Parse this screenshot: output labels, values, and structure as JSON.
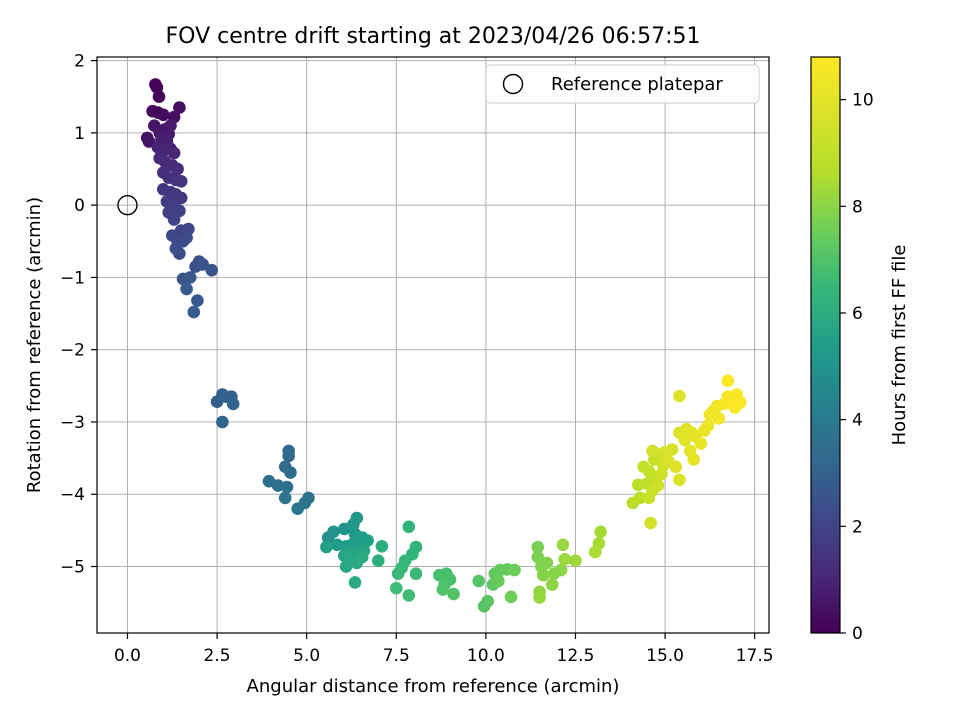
{
  "chart_data": {
    "type": "scatter",
    "title": "FOV centre drift starting at 2023/04/26 06:57:51",
    "xlabel": "Angular distance from reference (arcmin)",
    "ylabel": "Rotation from reference (arcmin)",
    "xlim": [
      -0.85,
      17.9
    ],
    "ylim": [
      -5.92,
      2.05
    ],
    "xticks": [
      0.0,
      2.5,
      5.0,
      7.5,
      10.0,
      12.5,
      15.0,
      17.5
    ],
    "xtick_labels": [
      "0.0",
      "2.5",
      "5.0",
      "7.5",
      "10.0",
      "12.5",
      "15.0",
      "17.5"
    ],
    "yticks": [
      -5,
      -4,
      -3,
      -2,
      -1,
      0,
      1,
      2
    ],
    "ytick_labels": [
      "−5",
      "−4",
      "−3",
      "−2",
      "−1",
      "0",
      "1",
      "2"
    ],
    "grid": true,
    "legend": {
      "position": "top-right",
      "entries": [
        "Reference platepar"
      ]
    },
    "reference_point": {
      "x": 0.0,
      "y": 0.0
    },
    "colorbar": {
      "label": "Hours from first FF file",
      "colormap": "viridis",
      "range": [
        0,
        10.8
      ],
      "ticks": [
        0,
        2,
        4,
        6,
        8,
        10
      ],
      "tick_labels": [
        "0",
        "2",
        "4",
        "6",
        "8",
        "10"
      ]
    },
    "points": [
      [
        0.78,
        1.67,
        0.05
      ],
      [
        0.82,
        1.63,
        0.1
      ],
      [
        0.88,
        1.5,
        0.15
      ],
      [
        0.7,
        1.3,
        0.2
      ],
      [
        0.85,
        1.28,
        0.25
      ],
      [
        1.0,
        1.25,
        0.3
      ],
      [
        1.3,
        1.22,
        0.35
      ],
      [
        1.45,
        1.35,
        0.4
      ],
      [
        0.55,
        0.93,
        0.45
      ],
      [
        0.6,
        0.88,
        0.5
      ],
      [
        0.75,
        1.1,
        0.55
      ],
      [
        0.9,
        1.0,
        0.6
      ],
      [
        1.05,
        1.05,
        0.65
      ],
      [
        1.15,
        0.98,
        0.7
      ],
      [
        1.2,
        1.1,
        0.75
      ],
      [
        0.95,
        0.92,
        0.8
      ],
      [
        1.1,
        0.88,
        0.85
      ],
      [
        0.85,
        0.8,
        0.9
      ],
      [
        1.0,
        0.75,
        0.95
      ],
      [
        1.2,
        0.78,
        1.0
      ],
      [
        1.3,
        0.72,
        1.05
      ],
      [
        0.9,
        0.65,
        1.1
      ],
      [
        1.05,
        0.6,
        1.15
      ],
      [
        1.25,
        0.55,
        1.2
      ],
      [
        1.4,
        0.5,
        1.25
      ],
      [
        1.0,
        0.45,
        1.3
      ],
      [
        1.15,
        0.38,
        1.35
      ],
      [
        1.35,
        0.35,
        1.4
      ],
      [
        1.5,
        0.33,
        1.45
      ],
      [
        1.0,
        0.22,
        1.5
      ],
      [
        1.2,
        0.18,
        1.55
      ],
      [
        1.35,
        0.15,
        1.6
      ],
      [
        1.5,
        0.1,
        1.65
      ],
      [
        1.1,
        0.05,
        1.7
      ],
      [
        1.25,
        0.0,
        1.75
      ],
      [
        1.35,
        -0.05,
        1.8
      ],
      [
        1.45,
        -0.08,
        1.85
      ],
      [
        1.15,
        -0.1,
        1.9
      ],
      [
        1.3,
        -0.2,
        1.95
      ],
      [
        1.5,
        -0.35,
        2.0
      ],
      [
        1.7,
        -0.33,
        2.05
      ],
      [
        1.25,
        -0.42,
        2.1
      ],
      [
        1.4,
        -0.5,
        2.15
      ],
      [
        1.55,
        -0.5,
        2.2
      ],
      [
        1.65,
        -0.45,
        2.25
      ],
      [
        1.35,
        -0.6,
        2.3
      ],
      [
        1.45,
        -0.67,
        2.35
      ],
      [
        1.9,
        -0.85,
        2.4
      ],
      [
        2.0,
        -0.78,
        2.45
      ],
      [
        2.1,
        -0.82,
        2.5
      ],
      [
        2.35,
        -0.9,
        2.55
      ],
      [
        1.55,
        -1.02,
        2.6
      ],
      [
        1.75,
        -1.0,
        2.65
      ],
      [
        1.65,
        -1.16,
        2.7
      ],
      [
        1.95,
        -1.32,
        2.75
      ],
      [
        1.85,
        -1.48,
        2.8
      ],
      [
        2.5,
        -2.72,
        2.9
      ],
      [
        2.65,
        -2.62,
        2.95
      ],
      [
        2.75,
        -2.65,
        3.0
      ],
      [
        2.9,
        -2.65,
        3.05
      ],
      [
        2.95,
        -2.75,
        3.1
      ],
      [
        2.65,
        -3.0,
        3.15
      ],
      [
        4.5,
        -3.4,
        3.3
      ],
      [
        4.5,
        -3.47,
        3.35
      ],
      [
        4.4,
        -3.62,
        3.4
      ],
      [
        4.55,
        -3.7,
        3.45
      ],
      [
        3.95,
        -3.82,
        3.5
      ],
      [
        4.2,
        -3.88,
        3.55
      ],
      [
        4.45,
        -3.9,
        3.6
      ],
      [
        4.4,
        -4.05,
        3.65
      ],
      [
        5.05,
        -4.05,
        3.7
      ],
      [
        4.95,
        -4.12,
        3.75
      ],
      [
        4.75,
        -4.2,
        3.8
      ],
      [
        5.6,
        -4.6,
        4.9
      ],
      [
        5.75,
        -4.52,
        5.0
      ],
      [
        6.05,
        -4.48,
        5.05
      ],
      [
        6.3,
        -4.42,
        5.1
      ],
      [
        6.4,
        -4.33,
        5.15
      ],
      [
        6.35,
        -4.55,
        5.2
      ],
      [
        6.55,
        -4.6,
        5.25
      ],
      [
        5.85,
        -4.7,
        5.3
      ],
      [
        6.1,
        -4.72,
        5.35
      ],
      [
        6.3,
        -4.68,
        5.4
      ],
      [
        6.5,
        -4.72,
        5.45
      ],
      [
        6.7,
        -4.64,
        5.5
      ],
      [
        5.55,
        -4.73,
        5.55
      ],
      [
        6.05,
        -4.85,
        5.6
      ],
      [
        6.25,
        -4.82,
        5.65
      ],
      [
        6.45,
        -4.85,
        5.7
      ],
      [
        6.6,
        -4.78,
        5.75
      ],
      [
        6.1,
        -5.0,
        5.8
      ],
      [
        6.2,
        -4.9,
        5.85
      ],
      [
        6.4,
        -4.95,
        5.9
      ],
      [
        6.35,
        -5.22,
        5.95
      ],
      [
        6.55,
        -4.87,
        6.0
      ],
      [
        7.1,
        -4.72,
        6.1
      ],
      [
        7.0,
        -4.92,
        6.15
      ],
      [
        7.85,
        -4.45,
        6.3
      ],
      [
        8.05,
        -4.73,
        6.35
      ],
      [
        7.95,
        -4.83,
        6.4
      ],
      [
        7.75,
        -4.92,
        6.45
      ],
      [
        7.65,
        -5.02,
        6.5
      ],
      [
        7.55,
        -5.1,
        6.55
      ],
      [
        8.05,
        -5.1,
        6.6
      ],
      [
        7.5,
        -5.3,
        6.65
      ],
      [
        7.85,
        -5.4,
        6.7
      ],
      [
        8.7,
        -5.12,
        6.8
      ],
      [
        8.9,
        -5.1,
        6.85
      ],
      [
        9.0,
        -5.18,
        6.9
      ],
      [
        8.85,
        -5.25,
        6.95
      ],
      [
        8.8,
        -5.32,
        7.0
      ],
      [
        9.1,
        -5.38,
        7.05
      ],
      [
        9.8,
        -5.2,
        7.1
      ],
      [
        9.95,
        -5.55,
        7.15
      ],
      [
        10.05,
        -5.48,
        7.2
      ],
      [
        10.2,
        -5.25,
        7.25
      ],
      [
        10.25,
        -5.1,
        7.3
      ],
      [
        10.4,
        -5.05,
        7.35
      ],
      [
        10.6,
        -5.04,
        7.4
      ],
      [
        10.35,
        -5.2,
        7.45
      ],
      [
        10.8,
        -5.05,
        7.5
      ],
      [
        10.7,
        -5.42,
        7.55
      ],
      [
        11.45,
        -4.73,
        7.7
      ],
      [
        11.45,
        -4.87,
        7.75
      ],
      [
        11.55,
        -5.0,
        7.8
      ],
      [
        11.7,
        -4.95,
        7.85
      ],
      [
        11.6,
        -5.12,
        7.9
      ],
      [
        11.9,
        -5.1,
        7.95
      ],
      [
        12.1,
        -5.05,
        8.0
      ],
      [
        11.85,
        -5.25,
        8.05
      ],
      [
        11.5,
        -5.35,
        8.1
      ],
      [
        11.5,
        -5.43,
        8.15
      ],
      [
        12.15,
        -4.7,
        8.2
      ],
      [
        12.2,
        -4.9,
        8.25
      ],
      [
        12.5,
        -4.92,
        8.3
      ],
      [
        13.2,
        -4.52,
        8.4
      ],
      [
        13.15,
        -4.68,
        8.45
      ],
      [
        13.05,
        -4.8,
        8.5
      ],
      [
        14.1,
        -4.12,
        8.8
      ],
      [
        14.3,
        -4.05,
        8.85
      ],
      [
        14.25,
        -3.87,
        8.9
      ],
      [
        14.5,
        -3.85,
        8.95
      ],
      [
        14.65,
        -3.75,
        9.0
      ],
      [
        14.4,
        -3.62,
        9.05
      ],
      [
        14.55,
        -3.68,
        9.1
      ],
      [
        14.7,
        -3.52,
        9.15
      ],
      [
        14.85,
        -3.45,
        9.2
      ],
      [
        14.65,
        -3.95,
        9.25
      ],
      [
        14.55,
        -4.05,
        9.3
      ],
      [
        14.8,
        -3.88,
        9.35
      ],
      [
        14.9,
        -3.72,
        9.4
      ],
      [
        14.95,
        -3.6,
        9.45
      ],
      [
        14.6,
        -4.4,
        9.5
      ],
      [
        14.65,
        -3.4,
        9.55
      ],
      [
        15.0,
        -3.42,
        9.6
      ],
      [
        15.2,
        -3.38,
        9.65
      ],
      [
        15.1,
        -3.55,
        9.7
      ],
      [
        15.4,
        -3.8,
        9.75
      ],
      [
        15.3,
        -3.62,
        9.8
      ],
      [
        15.4,
        -3.15,
        9.85
      ],
      [
        15.6,
        -3.1,
        9.9
      ],
      [
        15.55,
        -3.25,
        9.95
      ],
      [
        15.75,
        -3.15,
        10.0
      ],
      [
        15.85,
        -3.2,
        10.05
      ],
      [
        15.7,
        -3.4,
        10.1
      ],
      [
        15.8,
        -3.52,
        10.15
      ],
      [
        16.0,
        -3.3,
        10.2
      ],
      [
        16.1,
        -3.12,
        10.25
      ],
      [
        16.2,
        -3.05,
        10.3
      ],
      [
        16.25,
        -2.9,
        10.35
      ],
      [
        16.35,
        -2.85,
        10.4
      ],
      [
        16.45,
        -2.78,
        10.45
      ],
      [
        16.5,
        -2.95,
        10.5
      ],
      [
        16.65,
        -2.75,
        10.55
      ],
      [
        16.75,
        -2.65,
        10.6
      ],
      [
        16.9,
        -2.7,
        10.65
      ],
      [
        17.0,
        -2.62,
        10.7
      ],
      [
        16.95,
        -2.8,
        10.72
      ],
      [
        17.1,
        -2.73,
        10.75
      ],
      [
        16.75,
        -2.43,
        10.8
      ],
      [
        15.4,
        -2.64,
        9.8
      ]
    ]
  }
}
